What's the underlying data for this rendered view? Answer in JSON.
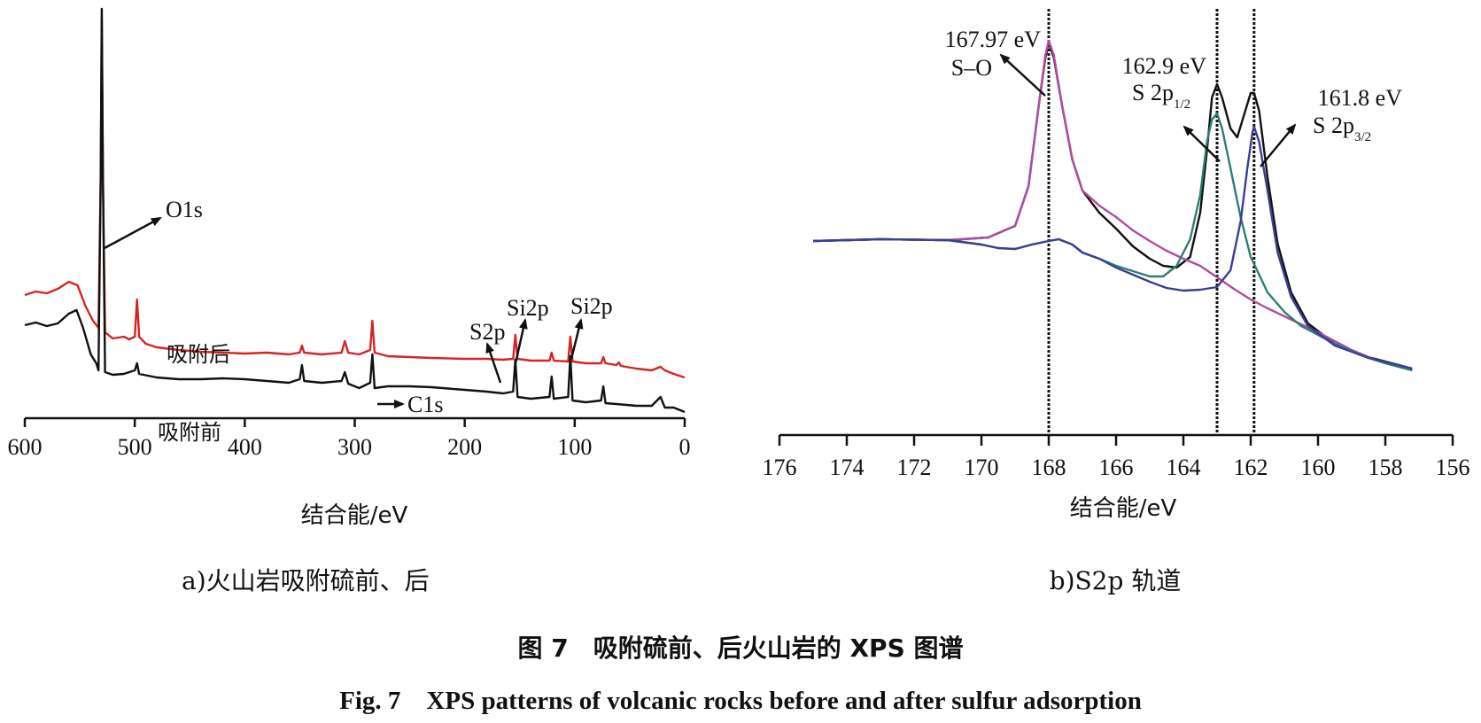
{
  "chart_data": [
    {
      "type": "line",
      "subcaption": "a)火山岩吸附硫前、后",
      "xlabel": "结合能/eV",
      "ylabel": "",
      "xlim": [
        600,
        0
      ],
      "x_reversed": true,
      "xticks": [
        600,
        500,
        400,
        300,
        200,
        100,
        0
      ],
      "series": [
        {
          "name": "吸附后",
          "color": "#d62424",
          "points": [
            [
              600,
              333
            ],
            [
              590,
              329
            ],
            [
              580,
              331
            ],
            [
              570,
              326
            ],
            [
              560,
              318
            ],
            [
              552,
              322
            ],
            [
              545,
              345
            ],
            [
              538,
              362
            ],
            [
              533,
              370
            ],
            [
              531,
              200
            ],
            [
              530,
              20
            ],
            [
              529,
              200
            ],
            [
              527,
              375
            ],
            [
              520,
              382
            ],
            [
              510,
              380
            ],
            [
              505,
              383
            ],
            [
              500,
              380
            ],
            [
              498,
              338
            ],
            [
              496,
              380
            ],
            [
              490,
              388
            ],
            [
              480,
              392
            ],
            [
              460,
              395
            ],
            [
              440,
              397
            ],
            [
              420,
              398
            ],
            [
              400,
              399
            ],
            [
              380,
              398
            ],
            [
              360,
              400
            ],
            [
              350,
              398
            ],
            [
              348,
              390
            ],
            [
              346,
              398
            ],
            [
              330,
              400
            ],
            [
              312,
              398
            ],
            [
              309,
              385
            ],
            [
              306,
              398
            ],
            [
              296,
              400
            ],
            [
              286,
              395
            ],
            [
              284,
              362
            ],
            [
              282,
              398
            ],
            [
              270,
              402
            ],
            [
              250,
              403
            ],
            [
              230,
              404
            ],
            [
              200,
              405
            ],
            [
              180,
              405
            ],
            [
              165,
              406
            ],
            [
              156,
              405
            ],
            [
              154,
              378
            ],
            [
              152,
              405
            ],
            [
              140,
              407
            ],
            [
              123,
              407
            ],
            [
              121,
              398
            ],
            [
              119,
              407
            ],
            [
              106,
              408
            ],
            [
              104,
              380
            ],
            [
              102,
              408
            ],
            [
              90,
              410
            ],
            [
              76,
              410
            ],
            [
              74,
              403
            ],
            [
              72,
              410
            ],
            [
              62,
              412
            ],
            [
              60,
              409
            ],
            [
              58,
              413
            ],
            [
              44,
              416
            ],
            [
              30,
              418
            ],
            [
              22,
              414
            ],
            [
              18,
              418
            ],
            [
              10,
              422
            ],
            [
              0,
              426
            ]
          ]
        },
        {
          "name": "吸附前",
          "color": "#111111",
          "points": [
            [
              600,
              367
            ],
            [
              590,
              364
            ],
            [
              580,
              368
            ],
            [
              570,
              365
            ],
            [
              560,
              354
            ],
            [
              553,
              350
            ],
            [
              547,
              370
            ],
            [
              540,
              400
            ],
            [
              535,
              410
            ],
            [
              533,
              418
            ],
            [
              531,
              200
            ],
            [
              530,
              10
            ],
            [
              529,
              200
            ],
            [
              527,
              420
            ],
            [
              520,
              423
            ],
            [
              510,
              422
            ],
            [
              500,
              418
            ],
            [
              498,
              410
            ],
            [
              496,
              422
            ],
            [
              480,
              426
            ],
            [
              460,
              428
            ],
            [
              440,
              428
            ],
            [
              420,
              427
            ],
            [
              400,
              428
            ],
            [
              380,
              430
            ],
            [
              360,
              432
            ],
            [
              350,
              428
            ],
            [
              348,
              412
            ],
            [
              346,
              430
            ],
            [
              330,
              432
            ],
            [
              312,
              430
            ],
            [
              309,
              420
            ],
            [
              306,
              433
            ],
            [
              296,
              438
            ],
            [
              286,
              432
            ],
            [
              284,
              400
            ],
            [
              282,
              438
            ],
            [
              270,
              436
            ],
            [
              250,
              436
            ],
            [
              230,
              437
            ],
            [
              200,
              440
            ],
            [
              180,
              442
            ],
            [
              165,
              444
            ],
            [
              156,
              442
            ],
            [
              154,
              406
            ],
            [
              152,
              448
            ],
            [
              140,
              450
            ],
            [
              123,
              448
            ],
            [
              121,
              425
            ],
            [
              119,
              450
            ],
            [
              106,
              448
            ],
            [
              104,
              402
            ],
            [
              102,
              452
            ],
            [
              90,
              454
            ],
            [
              76,
              452
            ],
            [
              74,
              436
            ],
            [
              72,
              455
            ],
            [
              62,
              456
            ],
            [
              44,
              458
            ],
            [
              30,
              458
            ],
            [
              22,
              448
            ],
            [
              18,
              460
            ],
            [
              10,
              460
            ],
            [
              0,
              465
            ]
          ]
        }
      ],
      "annotations": [
        "O1s",
        "C1s",
        "S2p",
        "Si2p",
        "Si2p",
        "吸附后",
        "吸附前"
      ]
    },
    {
      "type": "line",
      "subcaption": "b)S2p 轨道",
      "xlabel": "结合能/eV",
      "ylabel": "",
      "xlim": [
        176,
        156
      ],
      "x_reversed": true,
      "xticks": [
        176,
        174,
        172,
        170,
        168,
        166,
        164,
        162,
        160,
        158,
        156
      ],
      "reference_lines": [
        168.0,
        163.0,
        161.9
      ],
      "series": [
        {
          "name": "",
          "color": "#111111",
          "points": [
            [
              175,
              272
            ],
            [
              173,
              270
            ],
            [
              171,
              271
            ],
            [
              169.8,
              268
            ],
            [
              169,
              255
            ],
            [
              168.6,
              210
            ],
            [
              168.3,
              120
            ],
            [
              168.1,
              65
            ],
            [
              168.0,
              48
            ],
            [
              167.85,
              65
            ],
            [
              167.6,
              120
            ],
            [
              167.3,
              180
            ],
            [
              167,
              215
            ],
            [
              166.5,
              240
            ],
            [
              166,
              258
            ],
            [
              165.5,
              278
            ],
            [
              165,
              292
            ],
            [
              164.6,
              300
            ],
            [
              164.2,
              302
            ],
            [
              163.8,
              290
            ],
            [
              163.5,
              240
            ],
            [
              163.3,
              170
            ],
            [
              163.15,
              110
            ],
            [
              163.0,
              95
            ],
            [
              162.85,
              110
            ],
            [
              162.6,
              145
            ],
            [
              162.4,
              155
            ],
            [
              162.2,
              130
            ],
            [
              162.0,
              105
            ],
            [
              161.9,
              105
            ],
            [
              161.75,
              125
            ],
            [
              161.5,
              200
            ],
            [
              161.2,
              275
            ],
            [
              160.8,
              330
            ],
            [
              160.3,
              365
            ],
            [
              159.5,
              388
            ],
            [
              158.5,
              403
            ],
            [
              157.2,
              416
            ]
          ]
        },
        {
          "name": "",
          "color": "#b04d9e",
          "points": [
            [
              175,
              272
            ],
            [
              173,
              270
            ],
            [
              171,
              271
            ],
            [
              169.8,
              268
            ],
            [
              169,
              255
            ],
            [
              168.6,
              210
            ],
            [
              168.3,
              120
            ],
            [
              168.1,
              62
            ],
            [
              168.0,
              46
            ],
            [
              167.85,
              62
            ],
            [
              167.6,
              120
            ],
            [
              167.3,
              180
            ],
            [
              167,
              215
            ],
            [
              166.5,
              232
            ],
            [
              166,
              245
            ],
            [
              165.5,
              260
            ],
            [
              165,
              272
            ],
            [
              164.5,
              283
            ],
            [
              164,
              292
            ],
            [
              163.5,
              300
            ],
            [
              163,
              313
            ],
            [
              162.5,
              326
            ],
            [
              162,
              338
            ],
            [
              161.5,
              348
            ],
            [
              161,
              357
            ],
            [
              160.5,
              366
            ],
            [
              160,
              375
            ],
            [
              159.5,
              385
            ],
            [
              159,
              395
            ],
            [
              158.5,
              403
            ],
            [
              158,
              410
            ],
            [
              157.2,
              418
            ]
          ]
        },
        {
          "name": "",
          "color": "#2f7e72",
          "points": [
            [
              175,
              272
            ],
            [
              173,
              270
            ],
            [
              171,
              271
            ],
            [
              170,
              276
            ],
            [
              169.5,
              280
            ],
            [
              169,
              281
            ],
            [
              168.5,
              276
            ],
            [
              168,
              272
            ],
            [
              167.7,
              270
            ],
            [
              167.3,
              276
            ],
            [
              167,
              285
            ],
            [
              166.5,
              292
            ],
            [
              166,
              300
            ],
            [
              165.5,
              306
            ],
            [
              165,
              312
            ],
            [
              164.6,
              312
            ],
            [
              164.2,
              300
            ],
            [
              163.8,
              270
            ],
            [
              163.5,
              220
            ],
            [
              163.3,
              160
            ],
            [
              163.15,
              135
            ],
            [
              163.0,
              128
            ],
            [
              162.85,
              145
            ],
            [
              162.6,
              190
            ],
            [
              162.3,
              245
            ],
            [
              162,
              290
            ],
            [
              161.5,
              330
            ],
            [
              161,
              352
            ],
            [
              160.5,
              368
            ],
            [
              160,
              378
            ],
            [
              159.5,
              388
            ],
            [
              159,
              396
            ],
            [
              158.5,
              404
            ],
            [
              158,
              410
            ],
            [
              157.2,
              418
            ]
          ]
        },
        {
          "name": "",
          "color": "#3a3f96",
          "points": [
            [
              175,
              272
            ],
            [
              173,
              270
            ],
            [
              171,
              271
            ],
            [
              170,
              276
            ],
            [
              169.5,
              280
            ],
            [
              169,
              281
            ],
            [
              168.5,
              276
            ],
            [
              168,
              272
            ],
            [
              167.7,
              270
            ],
            [
              167.3,
              276
            ],
            [
              167,
              285
            ],
            [
              166.5,
              292
            ],
            [
              166,
              302
            ],
            [
              165.5,
              310
            ],
            [
              165,
              318
            ],
            [
              164.5,
              325
            ],
            [
              164,
              328
            ],
            [
              163.5,
              327
            ],
            [
              163,
              324
            ],
            [
              162.6,
              305
            ],
            [
              162.3,
              250
            ],
            [
              162.1,
              190
            ],
            [
              161.95,
              150
            ],
            [
              161.9,
              143
            ],
            [
              161.75,
              160
            ],
            [
              161.5,
              215
            ],
            [
              161.2,
              285
            ],
            [
              160.8,
              335
            ],
            [
              160.3,
              368
            ],
            [
              159.5,
              390
            ],
            [
              158.5,
              404
            ],
            [
              157.2,
              416
            ]
          ]
        }
      ],
      "annotations": [
        "167.97 eV",
        "S–O",
        "162.9 eV",
        "S 2p",
        "1/2",
        "161.8 eV",
        "S 2p",
        "3/2"
      ]
    }
  ],
  "caption": {
    "cn": "图 7　吸附硫前、后火山岩的 XPS 图谱",
    "en": "Fig. 7　XPS patterns of volcanic rocks before and after sulfur adsorption"
  }
}
